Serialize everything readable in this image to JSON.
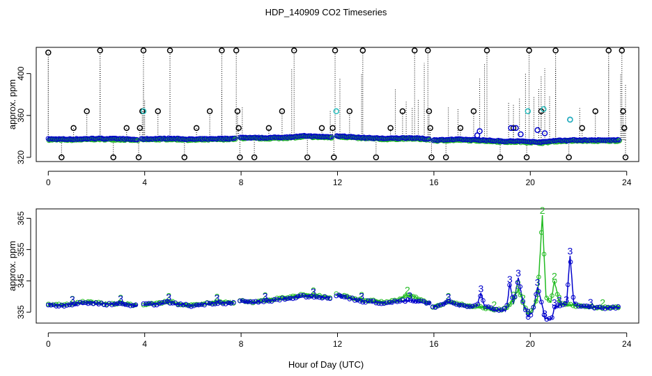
{
  "figure": {
    "title": "HDP_140909  CO2 Timeseries",
    "xlabel": "Hour of Day (UTC)"
  },
  "colors": {
    "black_marker": "#000000",
    "green_series": "#22bb22",
    "blue_series": "#0000cc",
    "cyan_marker": "#22bbbb"
  },
  "chart_data": [
    {
      "type": "scatter",
      "panel": "top",
      "ylabel": "approx. ppm",
      "xlim": [
        -0.5,
        24.5
      ],
      "ylim": [
        316,
        425
      ],
      "xticks": [
        0,
        4,
        8,
        12,
        16,
        20,
        24
      ],
      "yticks": [
        320,
        360,
        400
      ],
      "gaps": [
        [
          3.7,
          3.85
        ],
        [
          7.75,
          7.95
        ],
        [
          11.75,
          11.95
        ],
        [
          15.8,
          15.95
        ]
      ],
      "baseline": [
        [
          0,
          337.5
        ],
        [
          1,
          337.3
        ],
        [
          2,
          338
        ],
        [
          3,
          337.6
        ],
        [
          3.7,
          337
        ],
        [
          4,
          337.5
        ],
        [
          5,
          338
        ],
        [
          6,
          337.2
        ],
        [
          7,
          337.8
        ],
        [
          7.75,
          338
        ],
        [
          8,
          339
        ],
        [
          9,
          338.6
        ],
        [
          10,
          339.3
        ],
        [
          10.7,
          340.5
        ],
        [
          11,
          340
        ],
        [
          11.75,
          339.5
        ],
        [
          12,
          340.5
        ],
        [
          13,
          338.8
        ],
        [
          14,
          338
        ],
        [
          15,
          338.6
        ],
        [
          15.8,
          337.5
        ],
        [
          16,
          336.5
        ],
        [
          17,
          337.2
        ],
        [
          18,
          336.5
        ],
        [
          19,
          335.3
        ],
        [
          19.5,
          335.5
        ],
        [
          20,
          335
        ],
        [
          20.5,
          334.5
        ],
        [
          21,
          336
        ],
        [
          22,
          336.5
        ],
        [
          23,
          336.3
        ],
        [
          23.7,
          336.5
        ]
      ],
      "black_markers": [
        [
          0,
          420
        ],
        [
          0.55,
          320
        ],
        [
          1.05,
          348
        ],
        [
          1.6,
          364
        ],
        [
          2.15,
          422
        ],
        [
          2.7,
          320
        ],
        [
          3.25,
          348
        ],
        [
          3.75,
          320
        ],
        [
          3.8,
          348
        ],
        [
          3.9,
          364
        ],
        [
          3.95,
          422
        ],
        [
          4.55,
          364
        ],
        [
          5.05,
          422
        ],
        [
          5.65,
          320
        ],
        [
          6.15,
          348
        ],
        [
          6.7,
          364
        ],
        [
          7.2,
          422
        ],
        [
          7.8,
          422
        ],
        [
          7.85,
          364
        ],
        [
          7.9,
          348
        ],
        [
          7.95,
          320
        ],
        [
          8.55,
          320
        ],
        [
          9.15,
          348
        ],
        [
          9.7,
          364
        ],
        [
          10.2,
          422
        ],
        [
          10.75,
          320
        ],
        [
          11.35,
          348
        ],
        [
          11.8,
          348
        ],
        [
          11.85,
          320
        ],
        [
          11.9,
          422
        ],
        [
          12.5,
          364
        ],
        [
          13.05,
          422
        ],
        [
          13.6,
          320
        ],
        [
          14.2,
          348
        ],
        [
          14.7,
          364
        ],
        [
          15.2,
          422
        ],
        [
          15.75,
          422
        ],
        [
          15.8,
          364
        ],
        [
          15.85,
          348
        ],
        [
          15.9,
          320
        ],
        [
          16.5,
          320
        ],
        [
          17.1,
          348
        ],
        [
          17.65,
          364
        ],
        [
          18.2,
          422
        ],
        [
          18.75,
          320
        ],
        [
          19.3,
          348
        ],
        [
          19.85,
          320
        ],
        [
          19.95,
          422
        ],
        [
          20.45,
          364
        ],
        [
          21.05,
          422
        ],
        [
          21.6,
          320
        ],
        [
          22.15,
          348
        ],
        [
          22.7,
          364
        ],
        [
          23.25,
          422
        ],
        [
          23.8,
          422
        ],
        [
          23.85,
          364
        ],
        [
          23.9,
          348
        ],
        [
          23.95,
          320
        ]
      ],
      "cyan_markers": [
        [
          3.95,
          364
        ],
        [
          11.95,
          364
        ],
        [
          19.9,
          364
        ],
        [
          20.55,
          366
        ],
        [
          21.65,
          356
        ]
      ],
      "blue_markers": [
        [
          17.9,
          345
        ],
        [
          19.2,
          348
        ],
        [
          19.4,
          348
        ],
        [
          19.6,
          342
        ],
        [
          20.3,
          346
        ],
        [
          20.6,
          343
        ],
        [
          21.65,
          356
        ],
        [
          17.8,
          341
        ]
      ],
      "spikes": [
        [
          0,
          415
        ],
        [
          2.15,
          410
        ],
        [
          3.95,
          390
        ],
        [
          4.0,
          375
        ],
        [
          5.05,
          418
        ],
        [
          7.2,
          385
        ],
        [
          8.05,
          368
        ],
        [
          10.1,
          405
        ],
        [
          11.7,
          365
        ],
        [
          12.1,
          395
        ],
        [
          13,
          400
        ],
        [
          14.4,
          385
        ],
        [
          14.85,
          373
        ],
        [
          15.1,
          367
        ],
        [
          15.35,
          376
        ],
        [
          15.6,
          410
        ],
        [
          16.6,
          368
        ],
        [
          17,
          367
        ],
        [
          17.9,
          395
        ],
        [
          18.1,
          410
        ],
        [
          19.1,
          372
        ],
        [
          19.3,
          371
        ],
        [
          19.55,
          376
        ],
        [
          19.8,
          400
        ],
        [
          20.15,
          378
        ],
        [
          20.35,
          385
        ],
        [
          20.45,
          398
        ],
        [
          20.6,
          405
        ],
        [
          20.8,
          378
        ],
        [
          21.05,
          405
        ],
        [
          22.05,
          367
        ],
        [
          23.25,
          410
        ],
        [
          23.75,
          400
        ],
        [
          23.95,
          390
        ]
      ]
    },
    {
      "type": "line",
      "panel": "bottom",
      "ylabel": "approx. ppm",
      "xlim": [
        -0.5,
        24.5
      ],
      "ylim": [
        331.5,
        368
      ],
      "xticks": [
        0,
        4,
        8,
        12,
        16,
        20,
        24
      ],
      "yticks": [
        335,
        345,
        355,
        365
      ],
      "series": [
        {
          "name": "2",
          "color": "#22bb22",
          "segments": [
            [
              [
                0,
                337.5
              ],
              [
                0.5,
                337.2
              ],
              [
                1,
                337.6
              ],
              [
                1.5,
                338.3
              ],
              [
                2,
                338
              ],
              [
                2.5,
                337.7
              ],
              [
                3,
                337.9
              ],
              [
                3.7,
                337.2
              ]
            ],
            [
              [
                3.95,
                337.6
              ],
              [
                4.5,
                337.8
              ],
              [
                5,
                338.5
              ],
              [
                5.5,
                337.6
              ],
              [
                6,
                337.2
              ],
              [
                6.5,
                337.9
              ],
              [
                7,
                338.3
              ],
              [
                7.7,
                338.1
              ]
            ],
            [
              [
                7.95,
                338.8
              ],
              [
                8.5,
                338.2
              ],
              [
                9,
                338.7
              ],
              [
                9.5,
                339.3
              ],
              [
                10,
                339.6
              ],
              [
                10.5,
                340.5
              ],
              [
                11,
                340.3
              ],
              [
                11.7,
                339.8
              ]
            ],
            [
              [
                11.95,
                340.7
              ],
              [
                12.5,
                339.8
              ],
              [
                13,
                338.8
              ],
              [
                13.5,
                338.6
              ],
              [
                14,
                338
              ],
              [
                14.5,
                338.8
              ],
              [
                14.9,
                340.5
              ],
              [
                15.3,
                339.5
              ],
              [
                15.6,
                338.5
              ],
              [
                15.85,
                338
              ]
            ],
            [
              [
                15.95,
                336.8
              ],
              [
                16.3,
                337.5
              ],
              [
                16.6,
                338.5
              ],
              [
                17,
                337.6
              ],
              [
                17.5,
                337
              ],
              [
                18,
                336.4
              ],
              [
                18.5,
                335.8
              ],
              [
                19,
                336
              ],
              [
                19.3,
                339
              ],
              [
                19.5,
                342.5
              ],
              [
                19.7,
                338
              ],
              [
                19.9,
                334.5
              ],
              [
                20.1,
                336
              ],
              [
                20.3,
                339.5
              ],
              [
                20.5,
                366
              ],
              [
                20.65,
                340
              ],
              [
                20.85,
                338
              ],
              [
                21,
                345
              ],
              [
                21.2,
                338
              ],
              [
                21.6,
                337.3
              ],
              [
                22,
                337
              ],
              [
                22.5,
                336.7
              ],
              [
                23,
                336.5
              ],
              [
                23.7,
                336.7
              ]
            ]
          ]
        },
        {
          "name": "3",
          "color": "#0000cc",
          "segments": [
            [
              [
                0,
                337.4
              ],
              [
                0.5,
                337.1
              ],
              [
                1,
                337.5
              ],
              [
                1.5,
                338
              ],
              [
                2,
                337.8
              ],
              [
                2.5,
                337.5
              ],
              [
                3,
                337.7
              ],
              [
                3.7,
                337
              ]
            ],
            [
              [
                3.95,
                337.4
              ],
              [
                4.5,
                337.6
              ],
              [
                5,
                338.2
              ],
              [
                5.5,
                337.4
              ],
              [
                6,
                337
              ],
              [
                6.5,
                337.6
              ],
              [
                7,
                338
              ],
              [
                7.7,
                337.9
              ]
            ],
            [
              [
                7.95,
                338.6
              ],
              [
                8.5,
                338
              ],
              [
                9,
                338.5
              ],
              [
                9.5,
                339
              ],
              [
                10,
                339.4
              ],
              [
                10.5,
                340.2
              ],
              [
                11,
                340
              ],
              [
                11.7,
                339.6
              ]
            ],
            [
              [
                11.95,
                340.4
              ],
              [
                12.5,
                339.5
              ],
              [
                13,
                338.5
              ],
              [
                13.5,
                338.3
              ],
              [
                14,
                337.8
              ],
              [
                14.5,
                338.5
              ],
              [
                15,
                338.7
              ],
              [
                15.5,
                338.3
              ],
              [
                15.85,
                337.8
              ]
            ],
            [
              [
                15.95,
                336.6
              ],
              [
                16.3,
                337.3
              ],
              [
                16.6,
                338.3
              ],
              [
                17,
                337.3
              ],
              [
                17.5,
                336.8
              ],
              [
                17.8,
                337.2
              ],
              [
                17.95,
                341
              ],
              [
                18.1,
                337
              ],
              [
                18.5,
                335.6
              ],
              [
                19,
                335.8
              ],
              [
                19.15,
                344
              ],
              [
                19.3,
                337.5
              ],
              [
                19.5,
                346
              ],
              [
                19.7,
                338
              ],
              [
                19.9,
                333.5
              ],
              [
                20.1,
                335
              ],
              [
                20.3,
                343
              ],
              [
                20.5,
                337
              ],
              [
                20.6,
                333
              ],
              [
                20.9,
                333
              ],
              [
                21,
                336.5
              ],
              [
                21.2,
                337.3
              ],
              [
                21.5,
                337.5
              ],
              [
                21.65,
                353
              ],
              [
                21.8,
                338
              ],
              [
                22,
                337
              ],
              [
                22.5,
                336.6
              ],
              [
                23,
                336.3
              ],
              [
                23.7,
                336.5
              ]
            ]
          ]
        }
      ]
    }
  ]
}
